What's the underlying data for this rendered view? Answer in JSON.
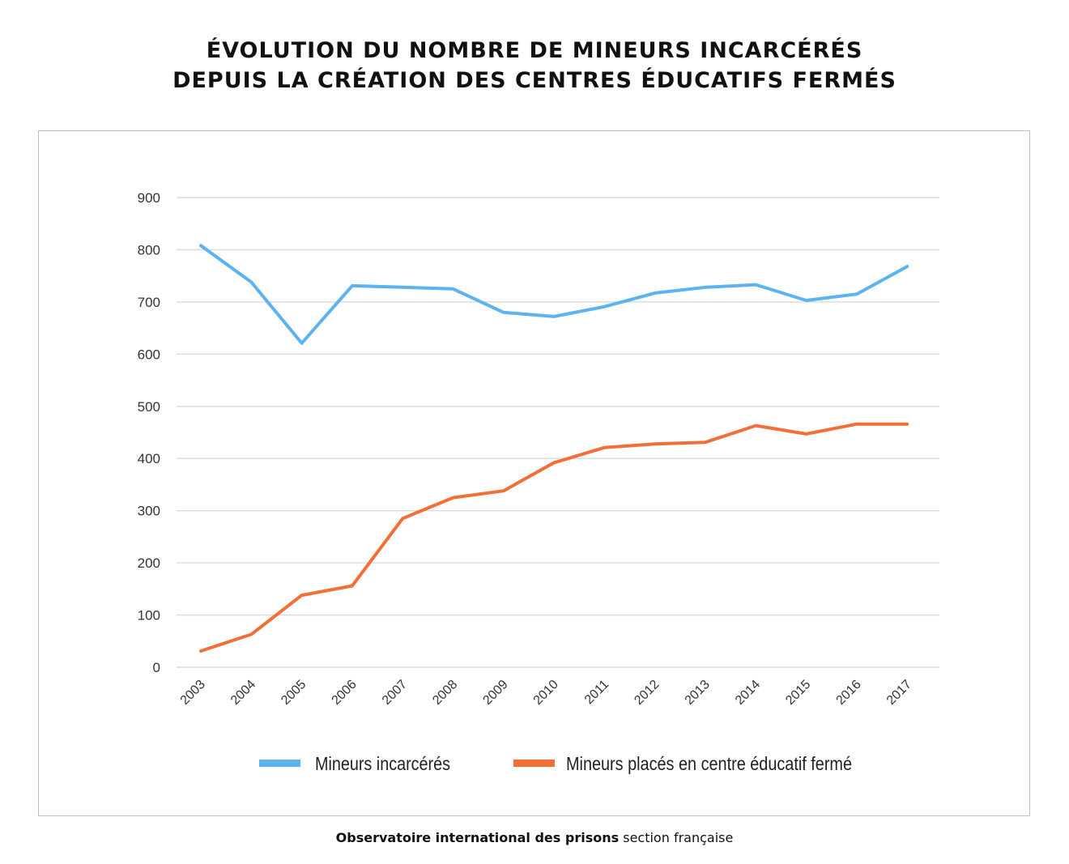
{
  "title_lines": [
    "ÉVOLUTION DU NOMBRE DE MINEURS INCARCÉRÉS",
    "DEPUIS LA CRÉATION DES CENTRES ÉDUCATIFS FERMÉS"
  ],
  "source": {
    "bold": "Observatoire international des prisons",
    "rest": " section française"
  },
  "chart_data": {
    "type": "line",
    "title": "ÉVOLUTION DU NOMBRE DE MINEURS INCARCÉRÉS DEPUIS LA CRÉATION DES CENTRES ÉDUCATIFS FERMÉS",
    "categories": [
      "2003",
      "2004",
      "2005",
      "2006",
      "2007",
      "2008",
      "2009",
      "2010",
      "2011",
      "2012",
      "2013",
      "2014",
      "2015",
      "2016",
      "2017"
    ],
    "ylim": [
      0,
      900
    ],
    "yticks": [
      0,
      100,
      200,
      300,
      400,
      500,
      600,
      700,
      800,
      900
    ],
    "grid": true,
    "legend_placement": "bottom",
    "series": [
      {
        "name": "Mineurs incarcérés",
        "color": "#5db3f0",
        "values": [
          808,
          738,
          621,
          731,
          728,
          725,
          680,
          672,
          691,
          717,
          728,
          733,
          703,
          715,
          768
        ]
      },
      {
        "name": "Mineurs placés en centre éducatif fermé",
        "color": "#f36f38",
        "values": [
          31,
          63,
          138,
          156,
          285,
          325,
          338,
          392,
          421,
          428,
          431,
          463,
          447,
          466,
          466
        ]
      }
    ]
  }
}
